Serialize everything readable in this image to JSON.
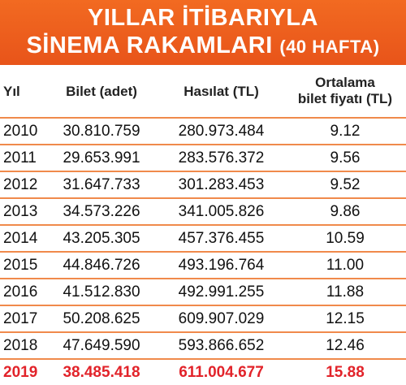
{
  "header": {
    "title": [
      "YILLAR İTİBARIYLA",
      "SİNEMA RAKAMLARI"
    ],
    "subtitle": "(40 HAFTA)"
  },
  "table": {
    "columns": [
      "Yıl",
      "Bilet (adet)",
      "Hasılat (TL)",
      [
        "Ortalama",
        "bilet fiyatı (TL)"
      ]
    ],
    "rows": [
      [
        "2010",
        "30.810.759",
        "280.973.484",
        "9.12"
      ],
      [
        "2011",
        "29.653.991",
        "283.576.372",
        "9.56"
      ],
      [
        "2012",
        "31.647.733",
        "301.283.453",
        "9.52"
      ],
      [
        "2013",
        "34.573.226",
        "341.005.826",
        "9.86"
      ],
      [
        "2014",
        "43.205.305",
        "457.376.455",
        "10.59"
      ],
      [
        "2015",
        "44.846.726",
        "493.196.764",
        "11.00"
      ],
      [
        "2016",
        "41.512.830",
        "492.991.255",
        "11.88"
      ],
      [
        "2017",
        "50.208.625",
        "609.907.029",
        "12.15"
      ],
      [
        "2018",
        "47.649.590",
        "593.866.652",
        "12.46"
      ],
      [
        "2019",
        "38.485.418",
        "611.004.677",
        "15.88"
      ]
    ]
  }
}
